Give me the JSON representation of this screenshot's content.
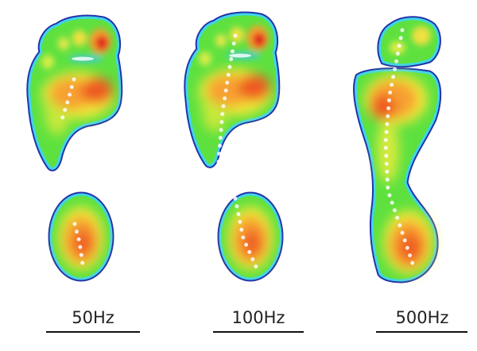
{
  "panels": [
    {
      "label": "50Hz"
    },
    {
      "label": "100Hz"
    },
    {
      "label": "500Hz"
    }
  ]
}
